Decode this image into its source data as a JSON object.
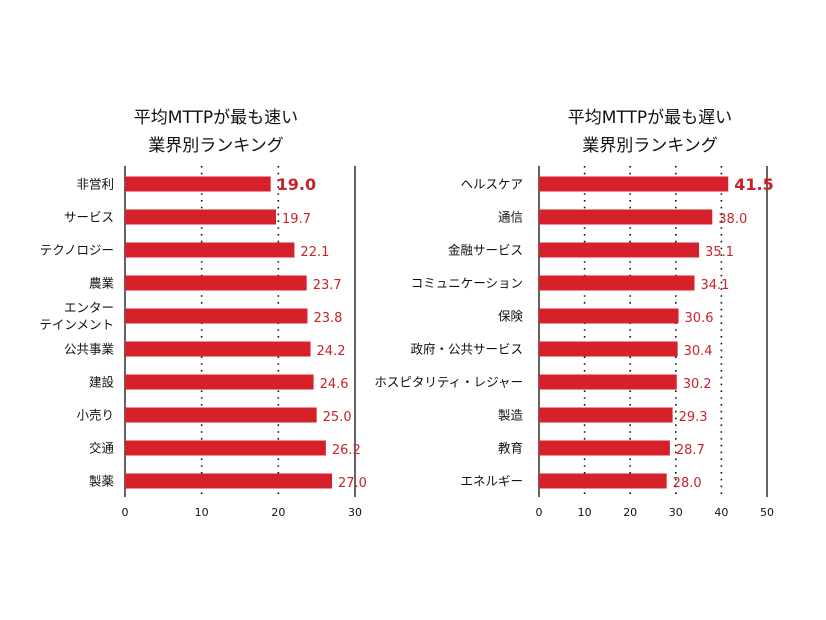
{
  "chart_data": [
    {
      "type": "bar",
      "orientation": "horizontal",
      "title_lines": [
        "平均MTTPが最も速い",
        "業界別ランキング"
      ],
      "categories": [
        [
          "非営利"
        ],
        [
          "サービス"
        ],
        [
          "テクノロジー"
        ],
        [
          "農業"
        ],
        [
          "エンター",
          "テインメント"
        ],
        [
          "公共事業"
        ],
        [
          "建設"
        ],
        [
          "小売り"
        ],
        [
          "交通"
        ],
        [
          "製薬"
        ]
      ],
      "values": [
        19.0,
        19.7,
        22.1,
        23.7,
        23.8,
        24.2,
        24.6,
        25.0,
        26.2,
        27.0
      ],
      "value_labels": [
        "19.0",
        "19.7",
        "22.1",
        "23.7",
        "23.8",
        "24.2",
        "24.6",
        "25.0",
        "26.2",
        "27.0"
      ],
      "highlight_index": 0,
      "xlim": [
        0,
        30
      ],
      "xticks": [
        "0",
        "10",
        "20",
        "30"
      ],
      "grid": "dotted vertical",
      "bar_color": "#d7212a",
      "label_color": "#c8232c"
    },
    {
      "type": "bar",
      "orientation": "horizontal",
      "title_lines": [
        "平均MTTPが最も遅い",
        "業界別ランキング"
      ],
      "categories": [
        [
          "ヘルスケア"
        ],
        [
          "通信"
        ],
        [
          "金融サービス"
        ],
        [
          "コミュニケーション"
        ],
        [
          "保険"
        ],
        [
          "政府・公共サービス"
        ],
        [
          "ホスピタリティ・レジャー"
        ],
        [
          "製造"
        ],
        [
          "教育"
        ],
        [
          "エネルギー"
        ]
      ],
      "values": [
        41.5,
        38.0,
        35.1,
        34.1,
        30.6,
        30.4,
        30.2,
        29.3,
        28.7,
        28.0
      ],
      "value_labels": [
        "41.5",
        "38.0",
        "35.1",
        "34.1",
        "30.6",
        "30.4",
        "30.2",
        "29.3",
        "28.7",
        "28.0"
      ],
      "highlight_index": 0,
      "xlim": [
        0,
        50
      ],
      "xticks": [
        "0",
        "10",
        "20",
        "30",
        "40",
        "50"
      ],
      "grid": "dotted vertical",
      "bar_color": "#d7212a",
      "label_color": "#c8232c"
    }
  ]
}
